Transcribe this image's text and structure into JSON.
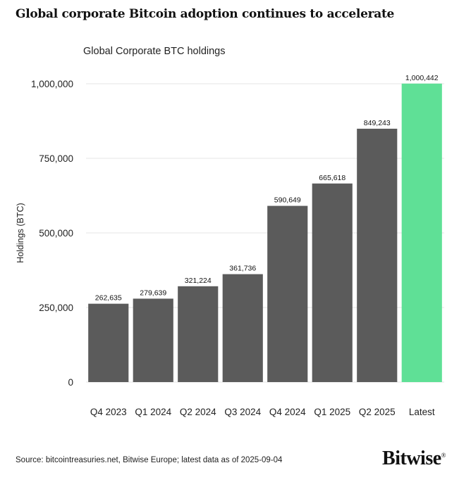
{
  "headline": "Global corporate Bitcoin adoption continues to accelerate",
  "source": "Source: bitcointreasuries.net, Bitwise Europe; latest data as of 2025-09-04",
  "brand": {
    "name": "Bitwise",
    "mark": "®"
  },
  "colors": {
    "bar": "#5b5b5b",
    "highlight": "#5fe096",
    "grid": "#e4e4e4",
    "text": "#222222"
  },
  "chart_data": {
    "type": "bar",
    "title": "Global Corporate BTC holdings",
    "xlabel": "",
    "ylabel": "Holdings (BTC)",
    "ylim": [
      0,
      1000000
    ],
    "yticks": [
      0,
      250000,
      500000,
      750000,
      1000000
    ],
    "ytick_labels": [
      "0",
      "250,000",
      "500,000",
      "750,000",
      "1,000,000"
    ],
    "grid": true,
    "categories": [
      "Q4 2023",
      "Q1 2024",
      "Q2 2024",
      "Q3 2024",
      "Q4 2024",
      "Q1 2025",
      "Q2 2025",
      "Latest"
    ],
    "values": [
      262635,
      279639,
      321224,
      361736,
      590649,
      665618,
      849243,
      1000442
    ],
    "value_labels": [
      "262,635",
      "279,639",
      "321,224",
      "361,736",
      "590,649",
      "665,618",
      "849,243",
      "1,000,442"
    ],
    "highlight_category": "Latest"
  }
}
